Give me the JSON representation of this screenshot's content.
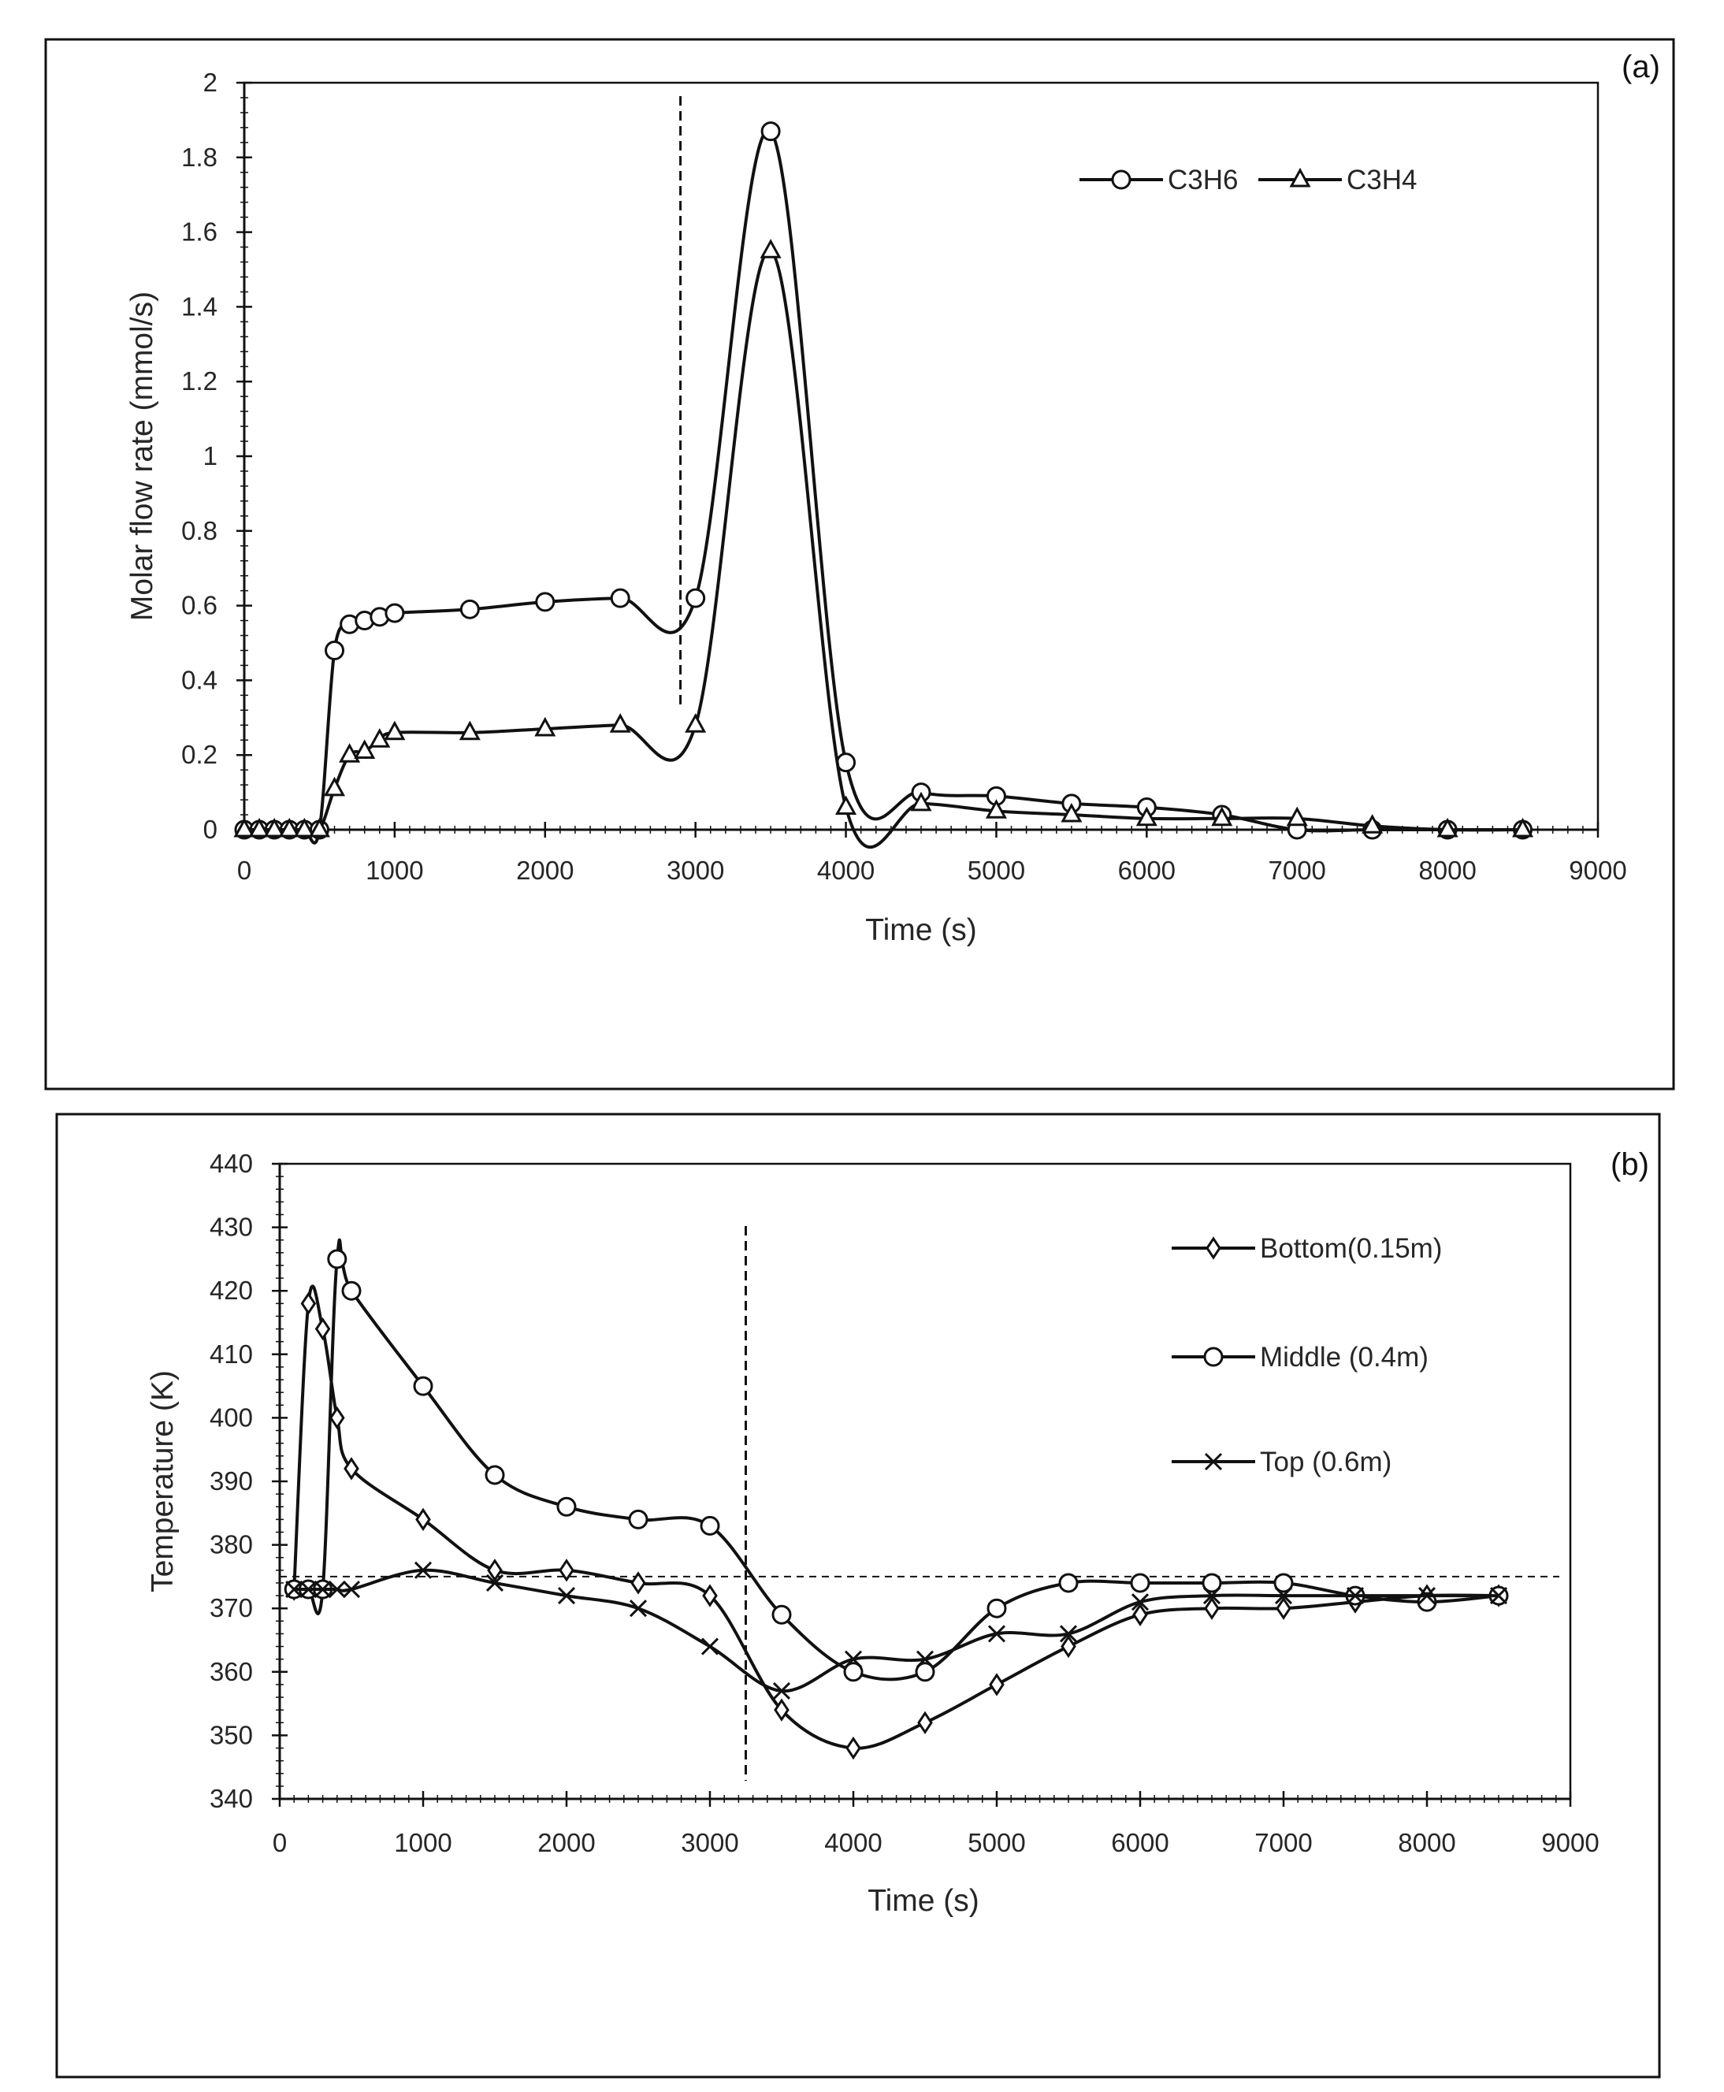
{
  "chart_data": [
    {
      "type": "line",
      "panel_label": "(a)",
      "title": "",
      "xlabel": "Time (s)",
      "ylabel": "Molar flow rate (mmol/s)",
      "xlim": [
        0,
        9000
      ],
      "ylim": [
        0,
        2
      ],
      "x_ticks": [
        "0",
        "1000",
        "2000",
        "3000",
        "4000",
        "5000",
        "6000",
        "7000",
        "8000",
        "9000"
      ],
      "y_ticks": [
        "0",
        "0.2",
        "0.4",
        "0.6",
        "0.8",
        "1",
        "1.2",
        "1.4",
        "1.6",
        "1.8",
        "2"
      ],
      "vertical_line_x": 2900,
      "legend_position": "top-right",
      "series": [
        {
          "name": "C3H6",
          "marker": "circle",
          "x": [
            0,
            100,
            200,
            300,
            400,
            500,
            600,
            700,
            800,
            900,
            1000,
            1500,
            2000,
            2500,
            3000,
            3500,
            4000,
            4500,
            5000,
            5500,
            6000,
            6500,
            7000,
            7500,
            8000,
            8500
          ],
          "y": [
            0,
            0,
            0,
            0,
            0,
            0,
            0.48,
            0.55,
            0.56,
            0.57,
            0.58,
            0.59,
            0.61,
            0.62,
            0.62,
            1.87,
            0.18,
            0.1,
            0.09,
            0.07,
            0.06,
            0.04,
            0.0,
            0.0,
            0.0,
            0.0
          ]
        },
        {
          "name": "C3H4",
          "marker": "triangle",
          "x": [
            0,
            100,
            200,
            300,
            400,
            500,
            600,
            700,
            800,
            900,
            1000,
            1500,
            2000,
            2500,
            3000,
            3500,
            4000,
            4500,
            5000,
            5500,
            6000,
            6500,
            7000,
            7500,
            8000,
            8500
          ],
          "y": [
            0,
            0,
            0,
            0,
            0,
            0,
            0.11,
            0.2,
            0.21,
            0.24,
            0.26,
            0.26,
            0.27,
            0.28,
            0.28,
            1.55,
            0.06,
            0.07,
            0.05,
            0.04,
            0.03,
            0.03,
            0.03,
            0.01,
            0.0,
            0.0
          ]
        }
      ]
    },
    {
      "type": "line",
      "panel_label": "(b)",
      "title": "",
      "xlabel": "Time (s)",
      "ylabel": "Temperature (K)",
      "xlim": [
        0,
        9000
      ],
      "ylim": [
        340,
        440
      ],
      "x_ticks": [
        "0",
        "1000",
        "2000",
        "3000",
        "4000",
        "5000",
        "6000",
        "7000",
        "8000",
        "9000"
      ],
      "y_ticks": [
        "340",
        "350",
        "360",
        "370",
        "380",
        "390",
        "400",
        "410",
        "420",
        "430",
        "440"
      ],
      "vertical_line_x": 3250,
      "horizontal_line_y": 375,
      "legend_position": "right",
      "series": [
        {
          "name": "Bottom(0.15m)",
          "marker": "diamond",
          "x": [
            100,
            200,
            300,
            400,
            500,
            1000,
            1500,
            2000,
            2500,
            3000,
            3500,
            4000,
            4500,
            5000,
            5500,
            6000,
            6500,
            7000,
            7500,
            8000,
            8500
          ],
          "y": [
            373,
            418,
            414,
            400,
            392,
            384,
            376,
            376,
            374,
            372,
            354,
            348,
            352,
            358,
            364,
            369,
            370,
            370,
            371,
            372,
            372
          ]
        },
        {
          "name": "Middle (0.4m)",
          "marker": "circle",
          "x": [
            100,
            200,
            300,
            400,
            500,
            1000,
            1500,
            2000,
            2500,
            3000,
            3500,
            4000,
            4500,
            5000,
            5500,
            6000,
            6500,
            7000,
            7500,
            8000,
            8500
          ],
          "y": [
            373,
            373,
            373,
            425,
            420,
            405,
            391,
            386,
            384,
            383,
            369,
            360,
            360,
            370,
            374,
            374,
            374,
            374,
            372,
            371,
            372
          ]
        },
        {
          "name": "Top (0.6m)",
          "marker": "x",
          "x": [
            100,
            200,
            300,
            400,
            500,
            1000,
            1500,
            2000,
            2500,
            3000,
            3500,
            4000,
            4500,
            5000,
            5500,
            6000,
            6500,
            7000,
            7500,
            8000,
            8500
          ],
          "y": [
            373,
            373,
            373,
            373,
            373,
            376,
            374,
            372,
            370,
            364,
            357,
            362,
            362,
            366,
            366,
            371,
            372,
            372,
            372,
            372,
            372
          ]
        }
      ]
    }
  ]
}
